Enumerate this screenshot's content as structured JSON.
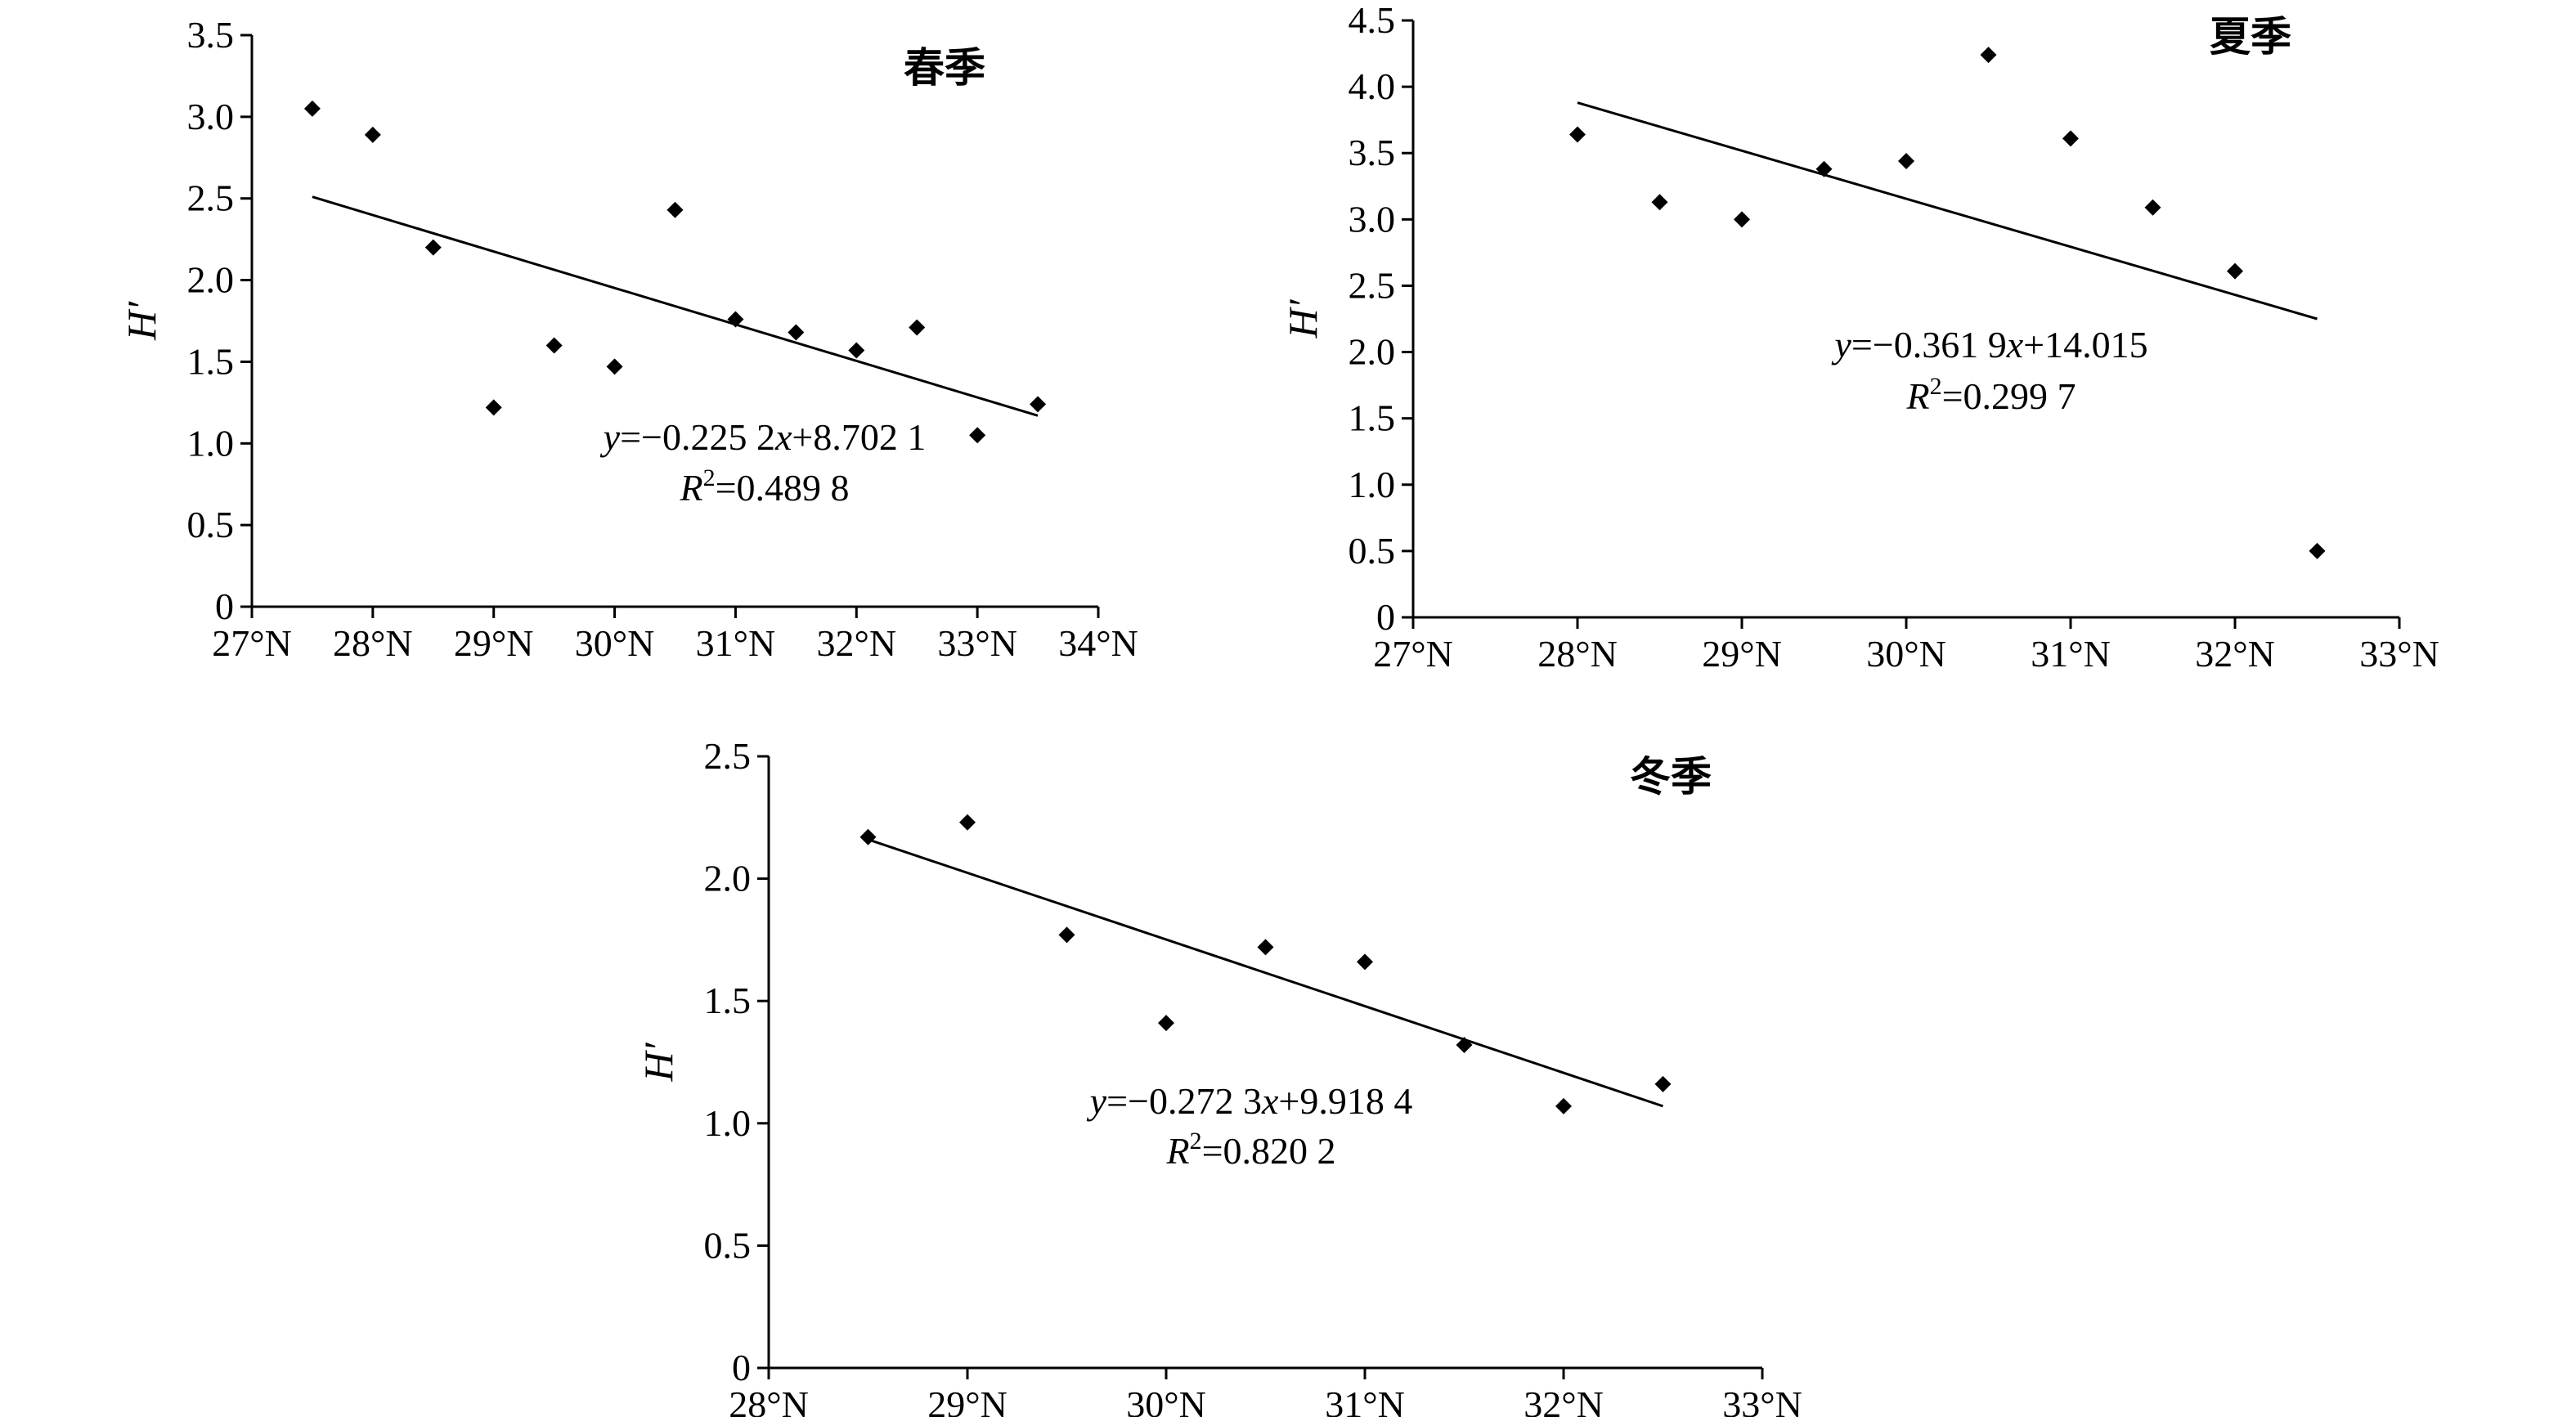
{
  "chart_data": [
    {
      "type": "scatter",
      "title": "春季",
      "xlabel": "",
      "ylabel": "H′",
      "xlim": [
        27,
        34
      ],
      "ylim": [
        0,
        3.5
      ],
      "x_ticks": [
        "27°N",
        "28°N",
        "29°N",
        "30°N",
        "31°N",
        "32°N",
        "33°N",
        "34°N"
      ],
      "y_ticks": [
        "0",
        "0.5",
        "1.0",
        "1.5",
        "2.0",
        "2.5",
        "3.0",
        "3.5"
      ],
      "points": [
        {
          "x": 27.5,
          "y": 3.05
        },
        {
          "x": 28.0,
          "y": 2.89
        },
        {
          "x": 28.5,
          "y": 2.2
        },
        {
          "x": 29.0,
          "y": 1.22
        },
        {
          "x": 29.5,
          "y": 1.6
        },
        {
          "x": 30.0,
          "y": 1.47
        },
        {
          "x": 30.5,
          "y": 2.43
        },
        {
          "x": 31.0,
          "y": 1.76
        },
        {
          "x": 31.5,
          "y": 1.68
        },
        {
          "x": 32.0,
          "y": 1.57
        },
        {
          "x": 32.5,
          "y": 1.71
        },
        {
          "x": 33.0,
          "y": 1.05
        },
        {
          "x": 33.5,
          "y": 1.24
        }
      ],
      "trendline": {
        "x": [
          27.5,
          33.5
        ],
        "y": [
          2.51,
          1.17
        ]
      },
      "equation": {
        "y_var": "y",
        "eq_a": "=−0.225 2",
        "x_var": "x",
        "eq_b": "+8.702 1",
        "r_var": "R",
        "r_sup": "2",
        "r_val": "=0.489 8"
      },
      "grid": false
    },
    {
      "type": "scatter",
      "title": "夏季",
      "xlabel": "",
      "ylabel": "H′",
      "xlim": [
        27,
        33
      ],
      "ylim": [
        0,
        4.5
      ],
      "x_ticks": [
        "27°N",
        "28°N",
        "29°N",
        "30°N",
        "31°N",
        "32°N",
        "33°N"
      ],
      "y_ticks": [
        "0",
        "0.5",
        "1.0",
        "1.5",
        "2.0",
        "2.5",
        "3.0",
        "3.5",
        "4.0",
        "4.5"
      ],
      "points": [
        {
          "x": 28.0,
          "y": 3.64
        },
        {
          "x": 28.5,
          "y": 3.13
        },
        {
          "x": 29.0,
          "y": 3.0
        },
        {
          "x": 29.5,
          "y": 3.38
        },
        {
          "x": 30.0,
          "y": 3.44
        },
        {
          "x": 30.5,
          "y": 4.24
        },
        {
          "x": 31.0,
          "y": 3.61
        },
        {
          "x": 31.5,
          "y": 3.09
        },
        {
          "x": 32.0,
          "y": 2.61
        },
        {
          "x": 32.5,
          "y": 0.5
        }
      ],
      "trendline": {
        "x": [
          28.0,
          32.5
        ],
        "y": [
          3.88,
          2.25
        ]
      },
      "equation": {
        "y_var": "y",
        "eq_a": "=−0.361 9",
        "x_var": "x",
        "eq_b": "+14.015",
        "r_var": "R",
        "r_sup": "2",
        "r_val": "=0.299 7"
      },
      "grid": false
    },
    {
      "type": "scatter",
      "title": "冬季",
      "xlabel": "",
      "ylabel": "H′",
      "xlim": [
        28,
        33
      ],
      "ylim": [
        0,
        2.5
      ],
      "x_ticks": [
        "28°N",
        "29°N",
        "30°N",
        "31°N",
        "32°N",
        "33°N"
      ],
      "y_ticks": [
        "0",
        "0.5",
        "1.0",
        "1.5",
        "2.0",
        "2.5"
      ],
      "points": [
        {
          "x": 28.5,
          "y": 2.17
        },
        {
          "x": 29.0,
          "y": 2.23
        },
        {
          "x": 29.5,
          "y": 1.77
        },
        {
          "x": 30.0,
          "y": 1.41
        },
        {
          "x": 30.5,
          "y": 1.72
        },
        {
          "x": 31.0,
          "y": 1.66
        },
        {
          "x": 31.5,
          "y": 1.32
        },
        {
          "x": 32.0,
          "y": 1.07
        },
        {
          "x": 32.5,
          "y": 1.16
        }
      ],
      "trendline": {
        "x": [
          28.5,
          32.5
        ],
        "y": [
          2.16,
          1.07
        ]
      },
      "equation": {
        "y_var": "y",
        "eq_a": "=−0.272 3",
        "x_var": "x",
        "eq_b": "+9.918 4",
        "r_var": "R",
        "r_sup": "2",
        "r_val": "=0.820 2"
      },
      "grid": false
    }
  ]
}
